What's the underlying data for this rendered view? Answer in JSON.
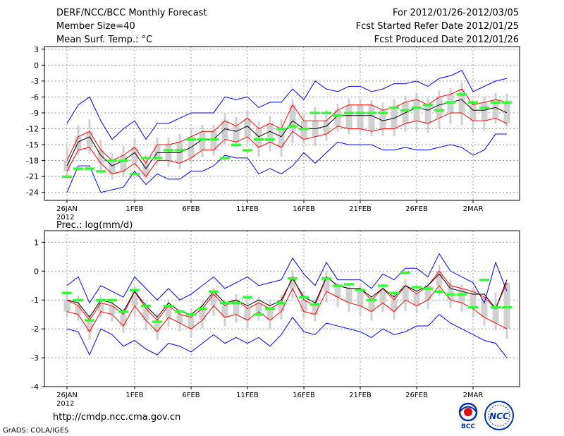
{
  "header": {
    "line1_left": "DERF/NCC/BCC Monthly Forecast",
    "line2_left": "Member Size=40",
    "line3_left": "Mean Surf. Temp.: °C",
    "line1_right": "For 2012/01/26-2012/03/05",
    "line2_right": "Fcst Started Refer Date 2012/01/25",
    "line3_right": "Fcst Produced Date 2012/01/26"
  },
  "footer": {
    "url": "http://cmdp.ncc.cma.gov.cn",
    "grads": "GrADS: COLA/IGES",
    "logo_left_text": "BCC",
    "logo_right_text": "NCC"
  },
  "colors": {
    "envelope": "#0000ff",
    "spread": "#ff0000",
    "mean": "#000000",
    "observed": "#33ff33",
    "box": "#d0d0d0",
    "grid": "#999999"
  },
  "chart_data": [
    {
      "type": "line",
      "title": "Mean Surf. Temp.: °C",
      "ylim": [
        -25.5,
        3.5
      ],
      "yticks": [
        3,
        0,
        -3,
        -6,
        -9,
        -12,
        -15,
        -18,
        -21,
        -24
      ],
      "xticks": [
        {
          "day": 0,
          "label": "26JAN",
          "sublabel": "2012"
        },
        {
          "day": 6,
          "label": "1FEB"
        },
        {
          "day": 11,
          "label": "6FEB"
        },
        {
          "day": 16,
          "label": "11FEB"
        },
        {
          "day": 21,
          "label": "16FEB"
        },
        {
          "day": 26,
          "label": "21FEB"
        },
        {
          "day": 31,
          "label": "26FEB"
        },
        {
          "day": 36,
          "label": "2MAR"
        }
      ],
      "x_days": [
        0,
        1,
        2,
        3,
        4,
        5,
        6,
        7,
        8,
        9,
        10,
        11,
        12,
        13,
        14,
        15,
        16,
        17,
        18,
        19,
        20,
        21,
        22,
        23,
        24,
        25,
        26,
        27,
        28,
        29,
        30,
        31,
        32,
        33,
        34,
        35,
        36,
        37,
        38,
        39
      ],
      "series": [
        {
          "name": "ensemble-max",
          "role": "envelope",
          "values": [
            -11.0,
            -7.5,
            -6.0,
            -10.5,
            -14.0,
            -12.0,
            -10.5,
            -14.0,
            -11.0,
            -11.0,
            -10.0,
            -9.0,
            -9.0,
            -9.0,
            -6.0,
            -6.5,
            -6.0,
            -8.0,
            -7.0,
            -7.0,
            -4.5,
            -6.5,
            -3.0,
            -4.5,
            -5.0,
            -4.0,
            -4.0,
            -5.0,
            -4.5,
            -3.5,
            -3.5,
            -3.0,
            -4.0,
            -2.5,
            -2.0,
            -1.0,
            -5.0,
            -4.0,
            -3.0,
            -2.5
          ]
        },
        {
          "name": "upper-spread",
          "role": "spread",
          "values": [
            -18.0,
            -13.5,
            -12.5,
            -16.0,
            -18.0,
            -17.0,
            -15.5,
            -18.5,
            -15.0,
            -15.0,
            -14.5,
            -13.5,
            -12.5,
            -12.5,
            -10.5,
            -11.5,
            -10.0,
            -12.0,
            -11.0,
            -12.0,
            -7.5,
            -10.5,
            -10.5,
            -10.5,
            -8.5,
            -7.5,
            -7.5,
            -7.5,
            -8.5,
            -8.0,
            -7.0,
            -6.5,
            -7.5,
            -6.0,
            -5.5,
            -4.5,
            -7.5,
            -7.0,
            -6.5,
            -7.0
          ]
        },
        {
          "name": "ensemble-mean",
          "role": "mean",
          "values": [
            -19.0,
            -14.5,
            -13.5,
            -17.0,
            -19.0,
            -18.0,
            -16.5,
            -19.5,
            -16.5,
            -16.5,
            -16.5,
            -15.5,
            -14.0,
            -14.0,
            -12.0,
            -12.5,
            -11.5,
            -13.5,
            -12.5,
            -13.5,
            -10.5,
            -12.0,
            -12.0,
            -11.5,
            -9.5,
            -9.5,
            -9.5,
            -9.5,
            -10.5,
            -10.0,
            -9.0,
            -8.0,
            -8.5,
            -7.5,
            -7.0,
            -6.5,
            -8.5,
            -8.5,
            -8.0,
            -9.0
          ]
        },
        {
          "name": "lower-spread",
          "role": "spread",
          "values": [
            -20.0,
            -16.0,
            -15.5,
            -18.5,
            -20.5,
            -20.0,
            -18.5,
            -21.0,
            -18.0,
            -18.0,
            -18.5,
            -17.5,
            -16.0,
            -16.0,
            -14.0,
            -14.5,
            -13.5,
            -15.5,
            -14.5,
            -15.5,
            -12.5,
            -14.0,
            -13.5,
            -13.0,
            -11.5,
            -12.0,
            -12.0,
            -12.5,
            -12.0,
            -12.0,
            -11.0,
            -10.5,
            -11.0,
            -10.0,
            -9.0,
            -9.0,
            -10.5,
            -10.5,
            -10.0,
            -11.0
          ]
        },
        {
          "name": "ensemble-min",
          "role": "envelope",
          "values": [
            -24.0,
            -19.0,
            -19.0,
            -24.0,
            -23.5,
            -23.0,
            -20.0,
            -22.5,
            -20.5,
            -21.5,
            -21.5,
            -20.0,
            -20.0,
            -19.0,
            -17.0,
            -17.5,
            -17.5,
            -20.5,
            -19.5,
            -20.5,
            -19.0,
            -16.5,
            -18.5,
            -16.5,
            -14.5,
            -15.0,
            -15.0,
            -15.0,
            -16.0,
            -16.0,
            -15.5,
            -16.0,
            -16.0,
            -15.5,
            -15.0,
            -15.5,
            -17.0,
            -16.0,
            -13.0,
            -13.0
          ]
        }
      ],
      "observed": [
        -21.0,
        -19.5,
        -19.5,
        -20.0,
        -18.0,
        -18.0,
        -20.5,
        -17.5,
        -17.5,
        -16.0,
        -16.0,
        -14.0,
        -14.0,
        -14.0,
        -17.5,
        -15.0,
        -16.0,
        -14.0,
        -14.0,
        -12.0,
        -11.5,
        -12.0,
        -9.0,
        -9.0,
        -9.5,
        -9.0,
        -9.0,
        -9.0,
        -9.0,
        -8.0,
        -8.5,
        -8.0,
        -7.5,
        -8.5,
        -7.0,
        -5.5,
        -7.0,
        -8.0,
        -7.0,
        -7.0
      ]
    },
    {
      "type": "line",
      "title": "Prec.: log(mm/d)",
      "ylim": [
        -4,
        1.4
      ],
      "yticks": [
        1,
        0,
        -1,
        -2,
        -3,
        -4
      ],
      "xticks": [
        {
          "day": 0,
          "label": "26JAN",
          "sublabel": "2012"
        },
        {
          "day": 6,
          "label": "1FEB"
        },
        {
          "day": 11,
          "label": "6FEB"
        },
        {
          "day": 16,
          "label": "11FEB"
        },
        {
          "day": 21,
          "label": "16FEB"
        },
        {
          "day": 26,
          "label": "21FEB"
        },
        {
          "day": 31,
          "label": "26FEB"
        },
        {
          "day": 36,
          "label": "2MAR"
        }
      ],
      "x_days": [
        0,
        1,
        2,
        3,
        4,
        5,
        6,
        7,
        8,
        9,
        10,
        11,
        12,
        13,
        14,
        15,
        16,
        17,
        18,
        19,
        20,
        21,
        22,
        23,
        24,
        25,
        26,
        27,
        28,
        29,
        30,
        31,
        32,
        33,
        34,
        35,
        36,
        37,
        38,
        39
      ],
      "series": [
        {
          "name": "ensemble-max",
          "role": "envelope",
          "values": [
            -0.5,
            -0.2,
            -1.1,
            -0.5,
            -0.7,
            -0.9,
            -0.2,
            -0.6,
            -1.0,
            -0.6,
            -1.0,
            -0.8,
            -0.5,
            -0.2,
            -0.6,
            -0.4,
            -0.2,
            -0.5,
            -0.4,
            -0.3,
            0.45,
            -0.1,
            -0.5,
            0.3,
            -0.3,
            -0.3,
            -0.3,
            -0.6,
            -0.1,
            -0.3,
            0.1,
            0.1,
            -0.2,
            0.6,
            0.0,
            -0.2,
            -0.4,
            -1.1,
            0.3,
            -0.7
          ]
        },
        {
          "name": "upper-spread",
          "role": "spread",
          "values": [
            -1.0,
            -1.2,
            -1.7,
            -1.1,
            -1.2,
            -1.5,
            -0.7,
            -1.3,
            -1.7,
            -1.2,
            -1.5,
            -1.6,
            -1.3,
            -0.8,
            -1.2,
            -1.0,
            -1.3,
            -1.1,
            -1.3,
            -1.1,
            -0.2,
            -1.0,
            -1.2,
            -0.2,
            -0.5,
            -0.6,
            -0.6,
            -1.0,
            -0.6,
            -1.0,
            -0.5,
            -0.8,
            -0.5,
            0.0,
            -0.5,
            -0.6,
            -0.7,
            -0.9,
            -1.3,
            -0.4
          ]
        },
        {
          "name": "ensemble-mean",
          "role": "mean",
          "values": [
            -1.0,
            -1.1,
            -1.6,
            -1.0,
            -1.1,
            -1.4,
            -0.7,
            -1.2,
            -1.6,
            -1.1,
            -1.4,
            -1.5,
            -1.2,
            -0.7,
            -1.1,
            -1.0,
            -1.2,
            -1.0,
            -1.2,
            -1.0,
            -0.25,
            -0.9,
            -1.1,
            -0.2,
            -0.5,
            -0.6,
            -0.6,
            -0.9,
            -0.6,
            -0.9,
            -0.5,
            -0.7,
            -0.5,
            -0.1,
            -0.6,
            -0.7,
            -0.8,
            -0.8,
            -1.3,
            -0.3
          ]
        },
        {
          "name": "lower-spread",
          "role": "spread",
          "values": [
            -1.4,
            -1.5,
            -2.1,
            -1.4,
            -1.5,
            -1.9,
            -1.2,
            -1.7,
            -2.1,
            -1.6,
            -1.8,
            -2.0,
            -1.7,
            -1.2,
            -1.6,
            -1.5,
            -1.7,
            -1.4,
            -1.7,
            -1.4,
            -0.6,
            -1.4,
            -1.5,
            -0.7,
            -0.9,
            -1.1,
            -1.2,
            -1.4,
            -1.1,
            -1.4,
            -1.0,
            -1.2,
            -1.0,
            -0.5,
            -1.0,
            -1.1,
            -1.3,
            -1.6,
            -1.8,
            -2.0
          ]
        },
        {
          "name": "ensemble-min",
          "role": "envelope",
          "values": [
            -2.0,
            -2.1,
            -2.9,
            -2.0,
            -2.2,
            -2.6,
            -2.4,
            -2.7,
            -2.9,
            -2.5,
            -2.6,
            -2.8,
            -2.5,
            -2.2,
            -2.5,
            -2.3,
            -2.5,
            -2.3,
            -2.6,
            -2.2,
            -1.6,
            -2.1,
            -2.2,
            -1.8,
            -1.9,
            -2.0,
            -2.1,
            -2.3,
            -2.0,
            -2.2,
            -2.1,
            -1.9,
            -1.9,
            -1.5,
            -1.8,
            -2.0,
            -2.2,
            -2.4,
            -2.5,
            -3.0
          ]
        }
      ],
      "observed": [
        -0.75,
        -1.0,
        -1.7,
        -1.0,
        -1.0,
        -1.4,
        -0.65,
        -1.2,
        -1.75,
        -1.2,
        -1.4,
        -1.5,
        -1.3,
        -0.7,
        -1.1,
        -1.1,
        -0.9,
        -1.5,
        -1.3,
        -1.1,
        -0.25,
        -0.9,
        -1.15,
        -0.25,
        -0.5,
        -0.45,
        -0.65,
        -1.0,
        -0.5,
        -0.75,
        -0.05,
        -0.55,
        -0.6,
        -0.7,
        -0.8,
        -0.8,
        -1.25,
        -0.3,
        -1.25,
        -1.25
      ]
    }
  ]
}
